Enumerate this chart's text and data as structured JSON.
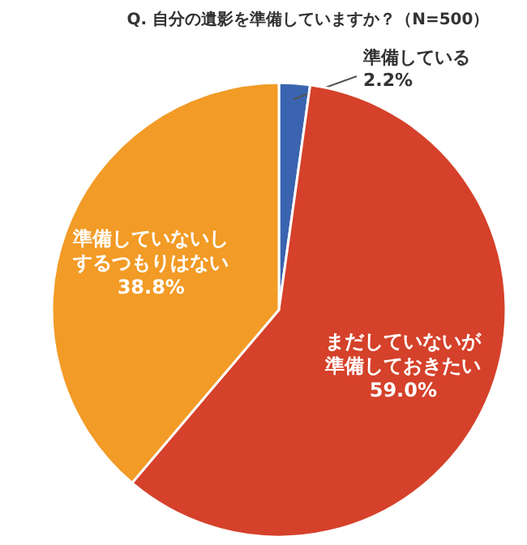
{
  "chart_data": {
    "type": "pie",
    "title": "Q. 自分の遺影を準備していますか？（N=500）",
    "categories": [
      "準備している",
      "まだしていないが準備しておきたい",
      "準備していないしするつもりはない"
    ],
    "values": [
      2.2,
      59.0,
      38.8
    ],
    "colors": [
      "#3b64b0",
      "#d5412a",
      "#f29b26"
    ],
    "value_labels": [
      "2.2%",
      "59.0%",
      "38.8%"
    ],
    "legend": false
  }
}
